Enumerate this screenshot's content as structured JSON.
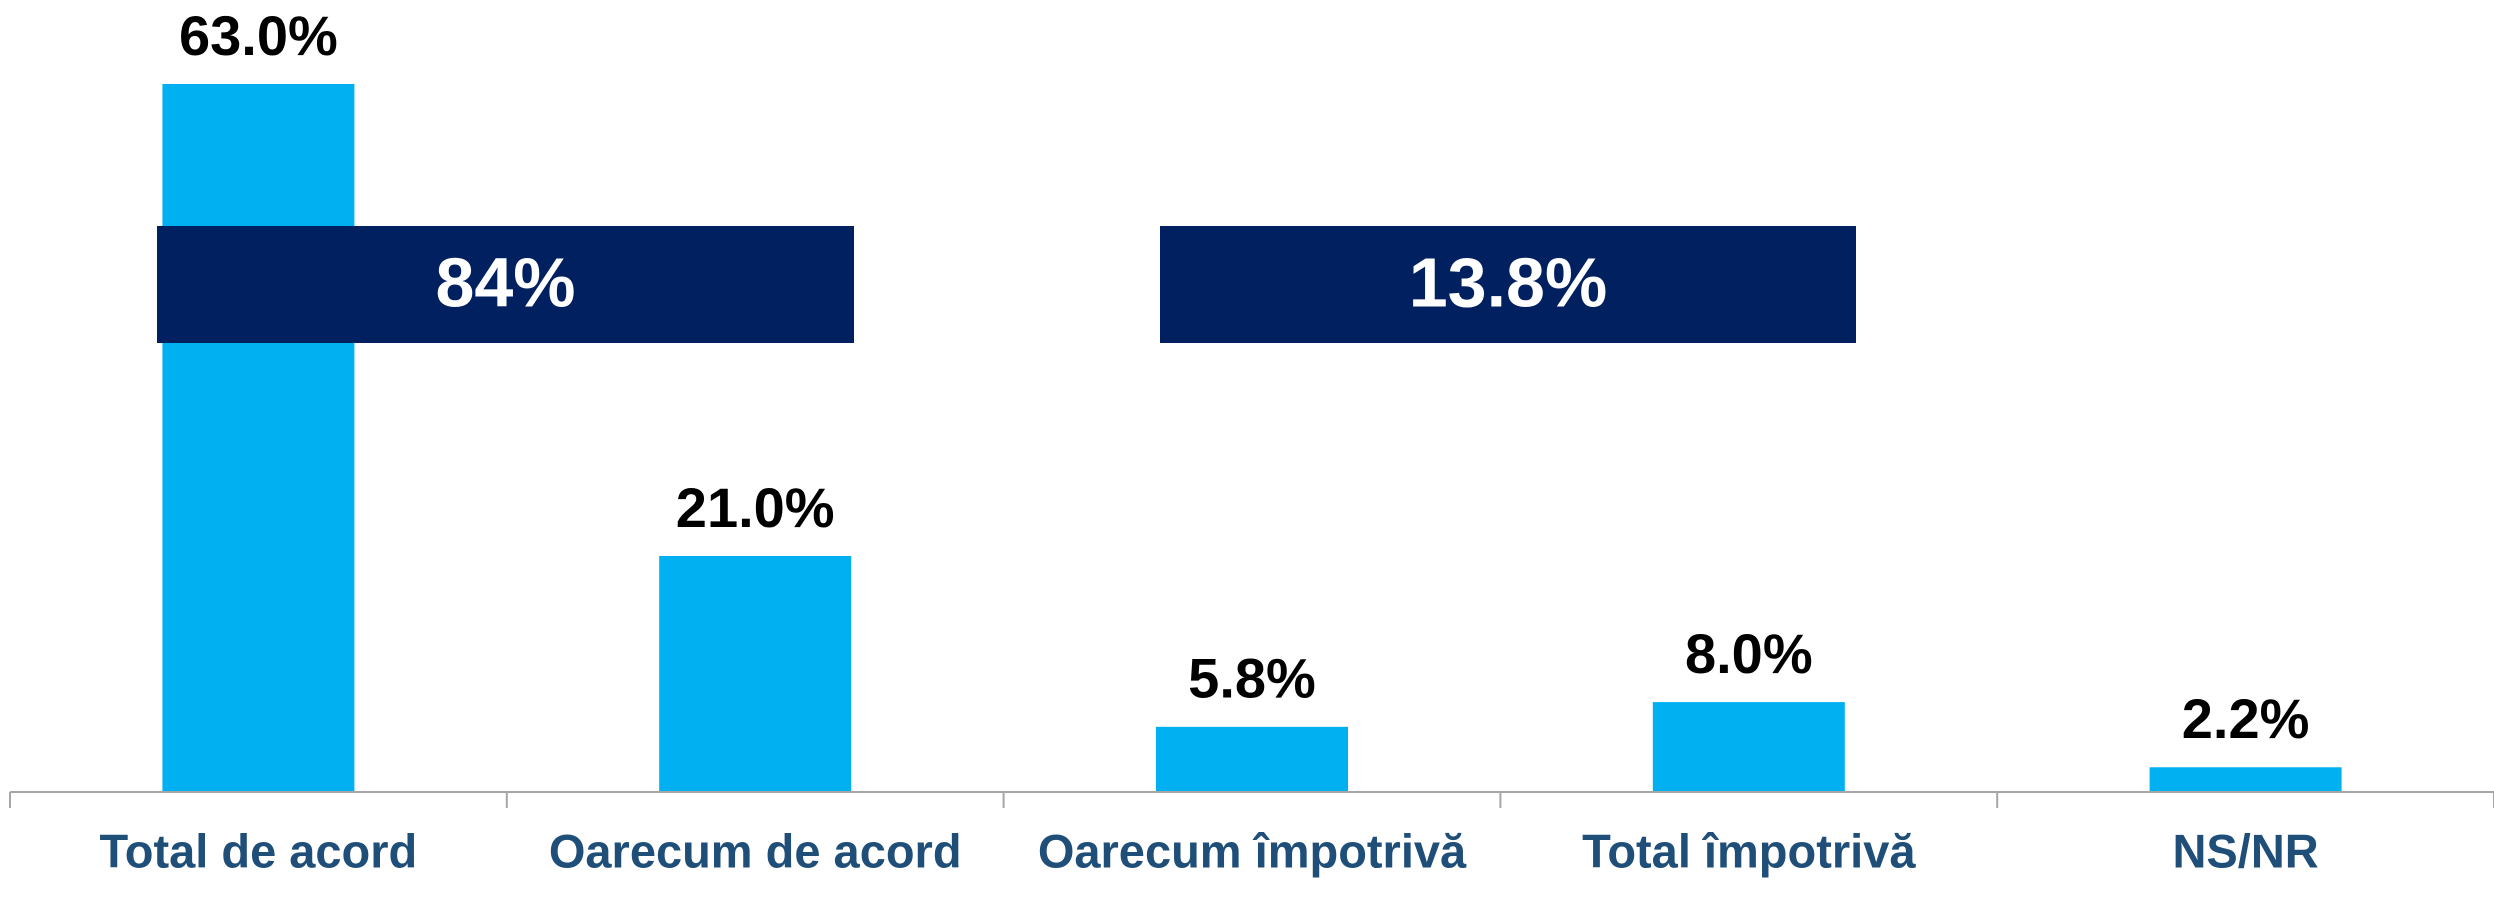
{
  "chart_data": {
    "type": "bar",
    "categories": [
      "Total de acord",
      "Oarecum de acord",
      "Oarecum împotrivă",
      "Total împotrivă",
      "NS/NR"
    ],
    "values": [
      63.0,
      21.0,
      5.8,
      8.0,
      2.2
    ],
    "value_labels": [
      "63.0%",
      "21.0%",
      "5.8%",
      "8.0%",
      "2.2%"
    ],
    "color": "#00b0f0",
    "annotations": [
      "84%",
      "13.8%"
    ]
  }
}
